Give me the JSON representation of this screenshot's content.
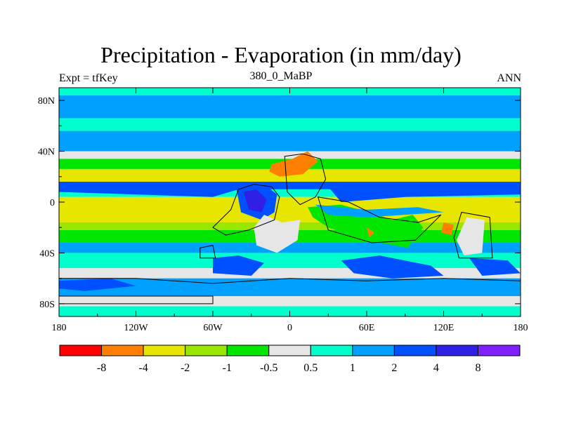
{
  "title": "Precipitation - Evaporation (in mm/day)",
  "subtitle_left": "Expt = tfKey",
  "subtitle_center": "380_0_MaBP",
  "subtitle_right": "ANN",
  "chart_data": {
    "type": "heatmap",
    "title": "Precipitation - Evaporation (in mm/day)",
    "x_ticks": [
      "180",
      "120W",
      "60W",
      "0",
      "60E",
      "120E",
      "180"
    ],
    "y_ticks": [
      "80N",
      "40N",
      "0",
      "40S",
      "80S"
    ],
    "xlim": [
      -180,
      180
    ],
    "ylim": [
      -90,
      90
    ],
    "colorbar": {
      "colors": [
        "#ff0000",
        "#ff8000",
        "#e6e600",
        "#99e600",
        "#00e600",
        "#e6e6e6",
        "#00ffcc",
        "#00a0ff",
        "#0050ff",
        "#3020e6",
        "#8020ff"
      ],
      "labels": [
        "-8",
        "-4",
        "-2",
        "-1",
        "-0.5",
        "0.5",
        "1",
        "2",
        "4",
        "8"
      ]
    },
    "latitude_bands": [
      {
        "lat": [
          84,
          90
        ],
        "class": "0.5 to 1"
      },
      {
        "lat": [
          66,
          84
        ],
        "class": "1 to 2"
      },
      {
        "lat": [
          56,
          66
        ],
        "class": "0.5 to 1"
      },
      {
        "lat": [
          40,
          56
        ],
        "class": "1 to 2"
      },
      {
        "lat": [
          34,
          40
        ],
        "class": "-0.5 to 0.5"
      },
      {
        "lat": [
          26,
          34
        ],
        "class": "-1 to -0.5"
      },
      {
        "lat": [
          16,
          26
        ],
        "class": "-4 to -2"
      },
      {
        "lat": [
          10,
          16
        ],
        "class": "2 to 4"
      },
      {
        "lat": [
          4,
          10
        ],
        "class": "0.5 to 1"
      },
      {
        "lat": [
          -16,
          4
        ],
        "class": "-4 to -2"
      },
      {
        "lat": [
          -22,
          -16
        ],
        "class": "-2 to -1"
      },
      {
        "lat": [
          -32,
          -22
        ],
        "class": "-1 to -0.5"
      },
      {
        "lat": [
          -40,
          -32
        ],
        "class": "1 to 2"
      },
      {
        "lat": [
          -52,
          -40
        ],
        "class": "0.5 to 1"
      },
      {
        "lat": [
          -60,
          -52
        ],
        "class": "-0.5 to 0.5"
      },
      {
        "lat": [
          -74,
          -60
        ],
        "class": "1 to 2"
      },
      {
        "lat": [
          -82,
          -74
        ],
        "class": "-0.5 to 0.5"
      },
      {
        "lat": [
          -90,
          -82
        ],
        "class": "0.5 to 1"
      }
    ]
  }
}
